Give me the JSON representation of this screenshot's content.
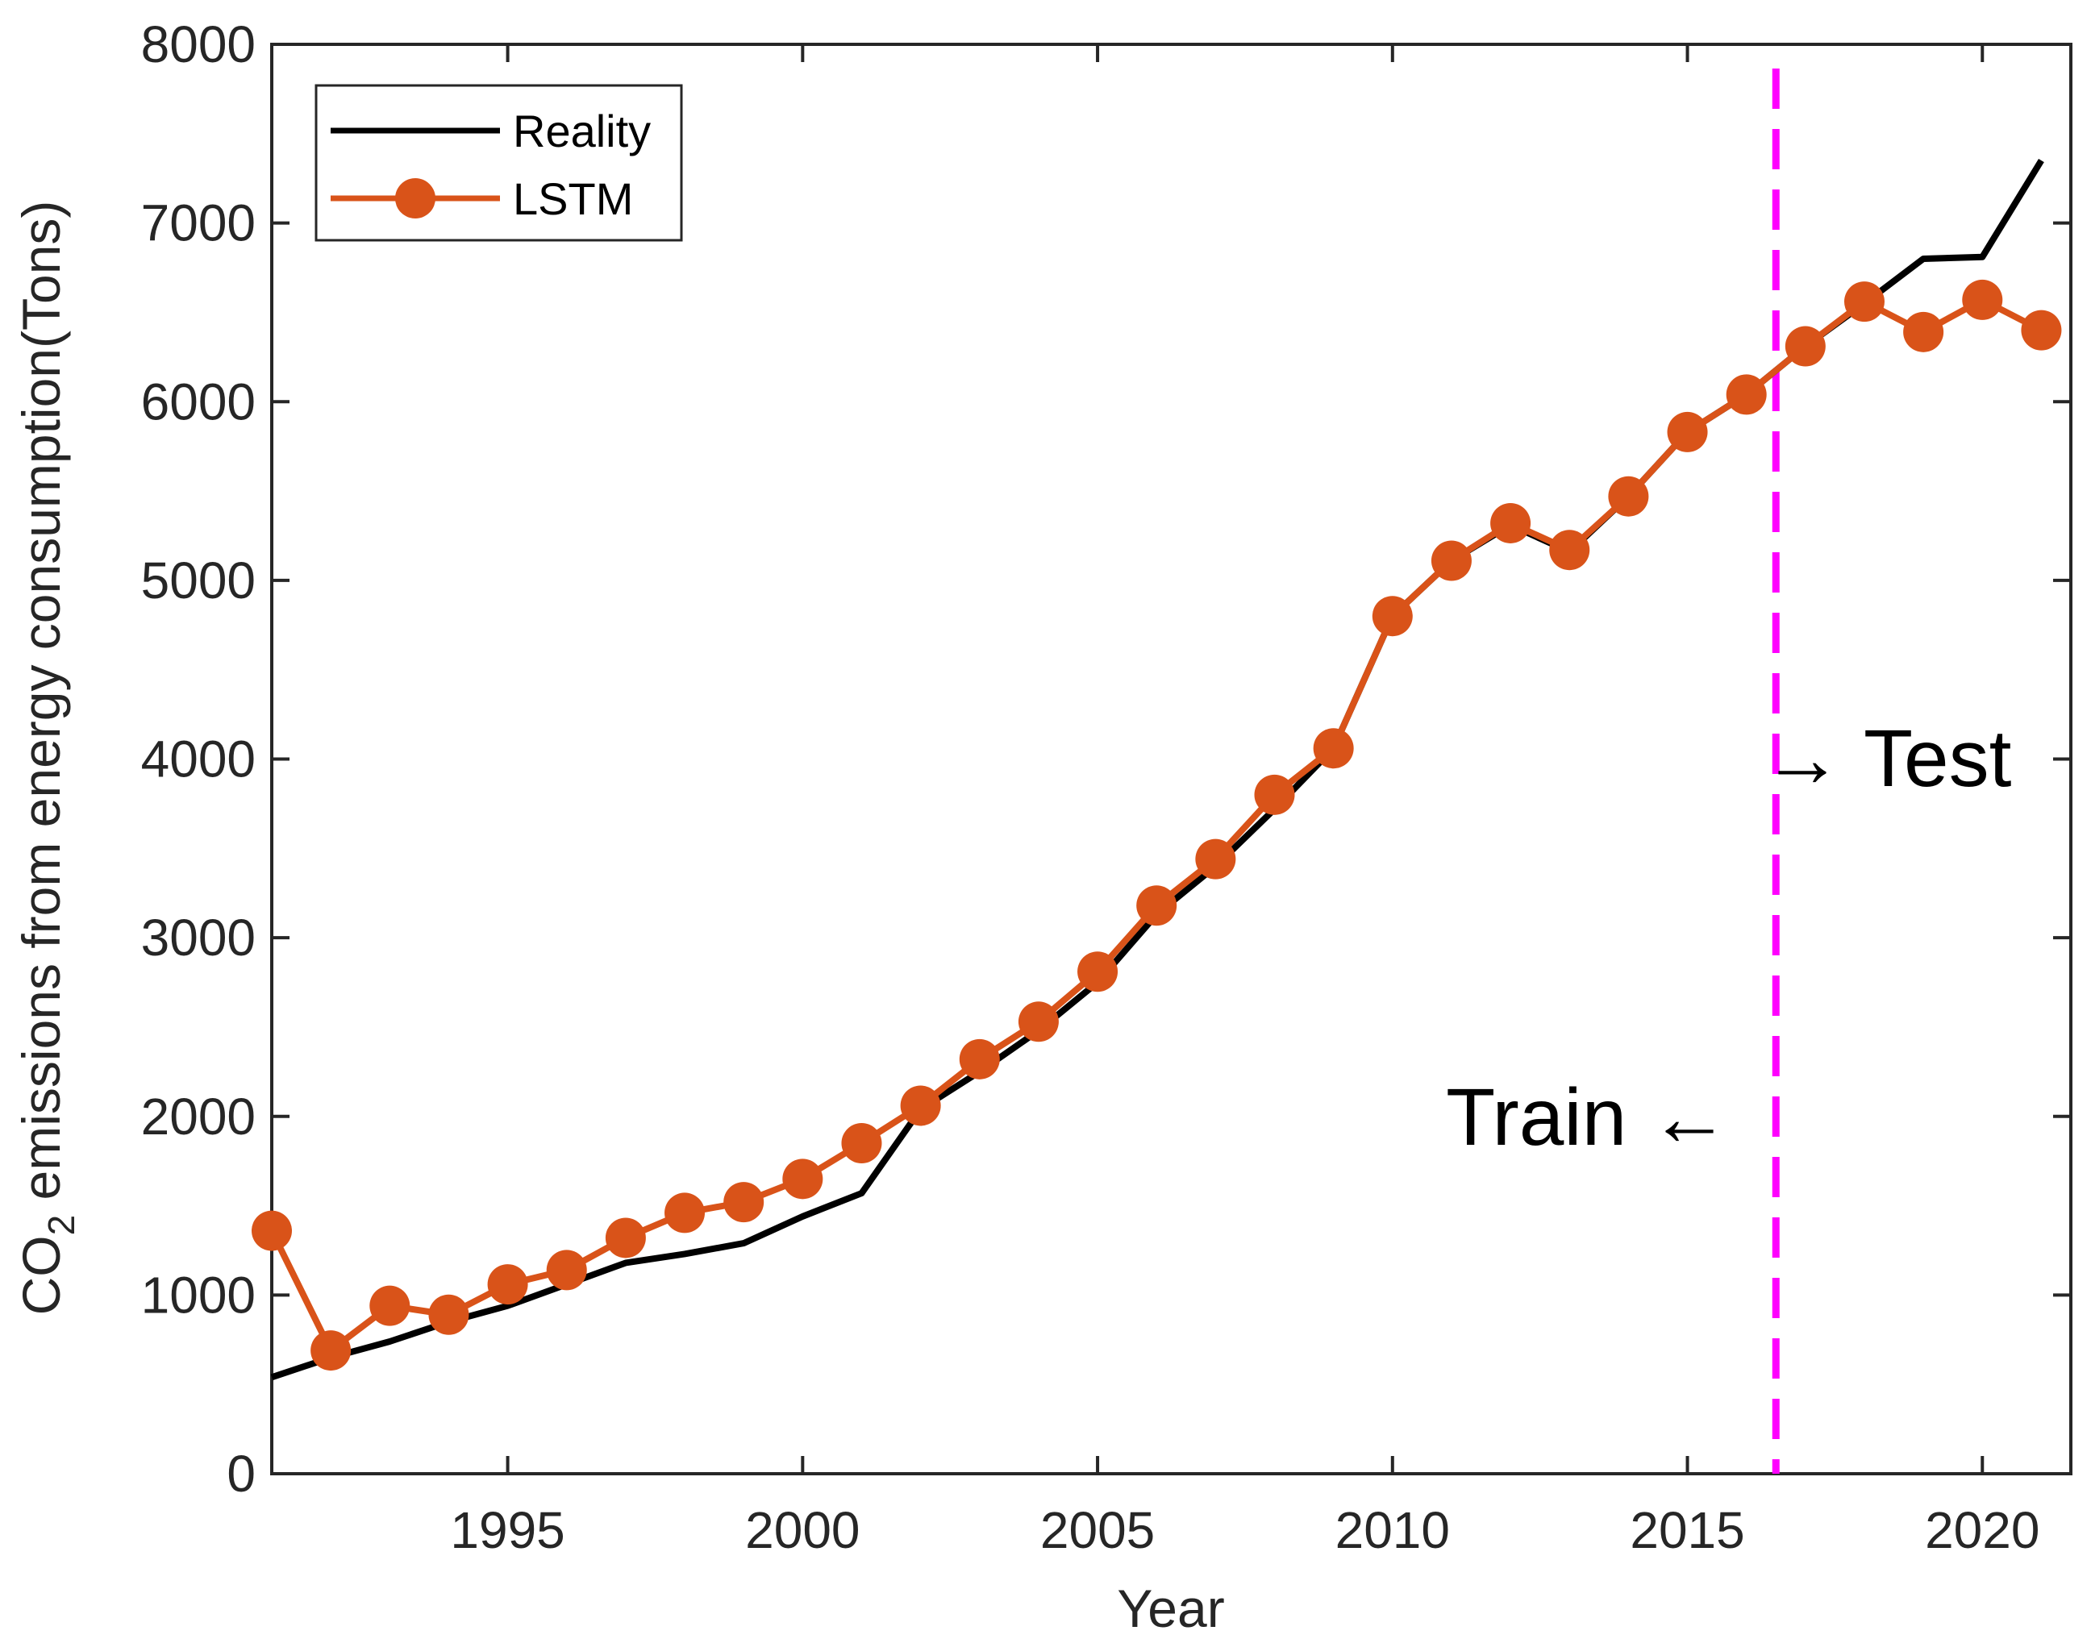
{
  "chart_data": {
    "type": "line",
    "title": "",
    "xlabel": "Year",
    "ylabel_prefix": "CO",
    "ylabel_sub": "2",
    "ylabel_suffix": " emissions from energy consumption(Tons)",
    "xlim": [
      1991,
      2021.5
    ],
    "ylim": [
      0,
      8000
    ],
    "xticks": [
      1995,
      2000,
      2005,
      2010,
      2015,
      2020
    ],
    "yticks": [
      0,
      1000,
      2000,
      3000,
      4000,
      5000,
      6000,
      7000,
      8000
    ],
    "grid": false,
    "legend_position": "top-left",
    "series": [
      {
        "name": "Reality",
        "color": "#000000",
        "marker": "none",
        "x": [
          1991,
          1992,
          1993,
          1994,
          1995,
          1996,
          1997,
          1998,
          1999,
          2000,
          2001,
          2002,
          2003,
          2004,
          2005,
          2006,
          2007,
          2008,
          2009,
          2010,
          2011,
          2012,
          2013,
          2014,
          2015,
          2016,
          2017,
          2018,
          2019,
          2020,
          2021
        ],
        "values": [
          540,
          650,
          740,
          850,
          940,
          1060,
          1180,
          1230,
          1290,
          1440,
          1570,
          2040,
          2250,
          2480,
          2750,
          3130,
          3400,
          3720,
          4060,
          4800,
          5110,
          5310,
          5160,
          5470,
          5830,
          6040,
          6310,
          6550,
          6800,
          6810,
          7350
        ]
      },
      {
        "name": "LSTM",
        "color": "#D95319",
        "marker": "circle",
        "x": [
          1991,
          1992,
          1993,
          1994,
          1995,
          1996,
          1997,
          1998,
          1999,
          2000,
          2001,
          2002,
          2003,
          2004,
          2005,
          2006,
          2007,
          2008,
          2009,
          2010,
          2011,
          2012,
          2013,
          2014,
          2015,
          2016,
          2017,
          2018,
          2019,
          2020,
          2021
        ],
        "values": [
          1360,
          690,
          940,
          890,
          1060,
          1140,
          1320,
          1460,
          1520,
          1650,
          1850,
          2060,
          2320,
          2530,
          2810,
          3180,
          3440,
          3800,
          4060,
          4800,
          5110,
          5320,
          5170,
          5470,
          5830,
          6040,
          6310,
          6560,
          6390,
          6570,
          6400
        ]
      }
    ],
    "annotations": {
      "split_x": 2016.5,
      "split_color": "#FF00FF",
      "test_label": "→ Test",
      "train_label": "Train ←"
    }
  }
}
